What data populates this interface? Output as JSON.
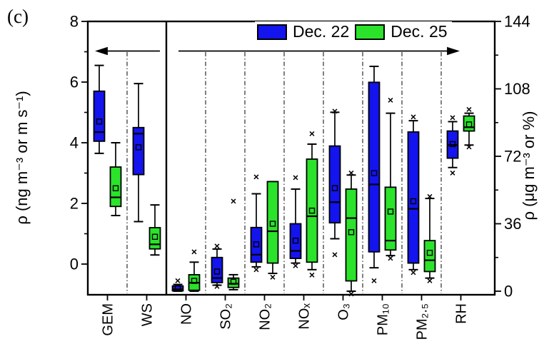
{
  "figure_label": "(c)",
  "legend": {
    "items": [
      {
        "label": "Dec. 22",
        "color": "#1414ee"
      },
      {
        "label": "Dec. 25",
        "color": "#2be32b"
      }
    ]
  },
  "chart_data": {
    "type": "box",
    "title": "",
    "left_axis": {
      "label": "ρ (ng m⁻³ or m s⁻¹)",
      "range": [
        -1,
        8
      ],
      "major_ticks": [
        0,
        2,
        4,
        6,
        8
      ],
      "minor_ticks": [
        1,
        3,
        5,
        7
      ]
    },
    "right_axis": {
      "label": "ρ (μg m⁻³ or %)",
      "range": [
        0,
        144
      ],
      "major_ticks": [
        0,
        36,
        72,
        108,
        144
      ],
      "minor_ticks": [
        18,
        54,
        90,
        126
      ]
    },
    "series": [
      {
        "key": "dec22",
        "name": "Dec. 22",
        "color": "#1414ee"
      },
      {
        "key": "dec25",
        "name": "Dec. 25",
        "color": "#2be32b"
      }
    ],
    "layout_hints": {
      "grid": "dash-dot vertical separators between categories",
      "panel_divider_after": "WS",
      "left_arrow_points_to_left_axis_over": [
        "GEM",
        "WS"
      ],
      "right_arrow_points_to_right_axis_over": [
        "NO",
        "SO2",
        "NO2",
        "NOx",
        "O3",
        "PM10",
        "PM2.5",
        "RH"
      ],
      "legend_position": "top-center"
    },
    "categories": [
      {
        "label": "GEM",
        "axis": "left",
        "dec22": {
          "whisker_low": 3.65,
          "q1": 4.05,
          "median": 4.35,
          "mean": 4.7,
          "q3": 5.7,
          "whisker_high": 6.55,
          "outliers": []
        },
        "dec25": {
          "whisker_low": 1.6,
          "q1": 1.9,
          "median": 2.2,
          "mean": 2.5,
          "q3": 3.2,
          "whisker_high": 4.0,
          "outliers": []
        }
      },
      {
        "label": "WS",
        "axis": "left",
        "dec22": {
          "whisker_low": 1.4,
          "q1": 2.95,
          "median": 4.3,
          "mean": 3.85,
          "q3": 4.5,
          "whisker_high": 5.95,
          "outliers": []
        },
        "dec25": {
          "whisker_low": 0.3,
          "q1": 0.5,
          "median": 0.65,
          "mean": 0.9,
          "q3": 1.2,
          "whisker_high": 1.95,
          "outliers": []
        }
      },
      {
        "label": "NO",
        "axis": "right",
        "dec22": {
          "whisker_low": 0,
          "q1": 0.2,
          "median": 1.0,
          "mean": 1.8,
          "q3": 2.8,
          "whisker_high": 3.6,
          "outliers": [
            5.5
          ]
        },
        "dec25": {
          "whisker_low": 0,
          "q1": 0.5,
          "median": 4.5,
          "mean": 5.5,
          "q3": 8.8,
          "whisker_high": 15.5,
          "outliers": [
            21
          ]
        }
      },
      {
        "label": "SO₂",
        "axis": "right",
        "dec22": {
          "whisker_low": 3.2,
          "q1": 4.6,
          "median": 7,
          "mean": 10.5,
          "q3": 18,
          "whisker_high": 22.5,
          "outliers": [
            24,
            2.5
          ]
        },
        "dec25": {
          "whisker_low": 0.8,
          "q1": 2,
          "median": 4,
          "mean": 5,
          "q3": 7,
          "whisker_high": 8.8,
          "outliers": [
            48
          ]
        }
      },
      {
        "label": "NO₂",
        "axis": "right",
        "dec22": {
          "whisker_low": 13,
          "q1": 15.5,
          "median": 19.5,
          "mean": 25,
          "q3": 34,
          "whisker_high": 52,
          "outliers": [
            61,
            11.5
          ]
        },
        "dec25": {
          "whisker_low": 9.5,
          "q1": 15,
          "median": 32,
          "mean": 36,
          "q3": 58.5,
          "whisker_high": 58.5,
          "outliers": [
            7.5
          ]
        }
      },
      {
        "label": "NOₓ",
        "axis": "right",
        "dec22": {
          "whisker_low": 15,
          "q1": 17.5,
          "median": 21.5,
          "mean": 27,
          "q3": 36,
          "whisker_high": 54.5,
          "outliers": [
            60.5,
            13.5
          ]
        },
        "dec25": {
          "whisker_low": 11.5,
          "q1": 15.5,
          "median": 40,
          "mean": 43,
          "q3": 70.5,
          "whisker_high": 78.5,
          "outliers": [
            84,
            8.5
          ]
        }
      },
      {
        "label": "O₃",
        "axis": "right",
        "dec22": {
          "whisker_low": 28,
          "q1": 36.5,
          "median": 47.5,
          "mean": 55,
          "q3": 77.5,
          "whisker_high": 95.5,
          "outliers": [
            96,
            19.5
          ]
        },
        "dec25": {
          "whisker_low": 0,
          "q1": 5.5,
          "median": 39,
          "mean": 31.5,
          "q3": 54.5,
          "whisker_high": 62,
          "outliers": [
            63,
            -1.5
          ]
        }
      },
      {
        "label": "PM₁₀",
        "axis": "right",
        "dec22": {
          "whisker_low": 12.5,
          "q1": 21,
          "median": 57,
          "mean": 63,
          "q3": 111.5,
          "whisker_high": 120,
          "outliers": [
            5.5
          ]
        },
        "dec25": {
          "whisker_low": 19,
          "q1": 22,
          "median": 27,
          "mean": 42.5,
          "q3": 55.5,
          "whisker_high": 95,
          "outliers": [
            102,
            17.5
          ]
        }
      },
      {
        "label": "PM₂.₅",
        "axis": "right",
        "dec22": {
          "whisker_low": 11.5,
          "q1": 15,
          "median": 44,
          "mean": 48,
          "q3": 85,
          "whisker_high": 91,
          "outliers": [
            93,
            10
          ]
        },
        "dec25": {
          "whisker_low": 7,
          "q1": 10.5,
          "median": 16.5,
          "mean": 20.5,
          "q3": 27,
          "whisker_high": 49.5,
          "outliers": [
            50.5,
            5.5
          ]
        }
      },
      {
        "label": "RH",
        "axis": "right",
        "dec22": {
          "whisker_low": 66,
          "q1": 71,
          "median": 78,
          "mean": 78.5,
          "q3": 85.5,
          "whisker_high": 90.5,
          "outliers": [
            92.5,
            63
          ]
        },
        "dec25": {
          "whisker_low": 78,
          "q1": 85.5,
          "median": 87.5,
          "mean": 89,
          "q3": 93.5,
          "whisker_high": 95,
          "outliers": [
            97,
            77
          ]
        }
      }
    ]
  }
}
